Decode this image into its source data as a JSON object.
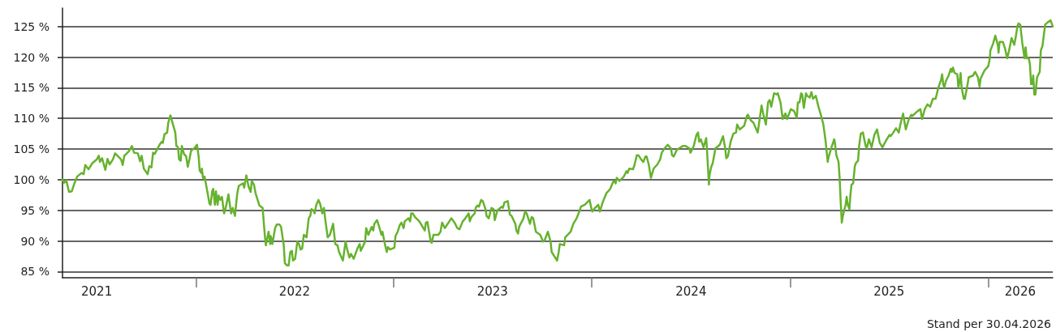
{
  "chart_data": {
    "type": "line",
    "color": "#66b22e",
    "marker": "none",
    "line_style": "solid",
    "grid": "y",
    "xlim": [
      "2021-04-30",
      "2026-04-30"
    ],
    "xticks": [
      {
        "value": "2021-07-02",
        "label": "2021"
      },
      {
        "value": "2022-01-01",
        "label": null
      },
      {
        "value": "2022-07-02",
        "label": "2022"
      },
      {
        "value": "2023-01-01",
        "label": null
      },
      {
        "value": "2023-07-02",
        "label": "2023"
      },
      {
        "value": "2024-01-01",
        "label": null
      },
      {
        "value": "2024-07-02",
        "label": "2024"
      },
      {
        "value": "2025-01-01",
        "label": null
      },
      {
        "value": "2025-07-02",
        "label": "2025"
      },
      {
        "value": "2026-01-01",
        "label": null
      },
      {
        "value": "2026-03-01",
        "label": "2026"
      }
    ],
    "ylim": [
      84,
      128
    ],
    "yticks": [
      {
        "value": 85,
        "label": "85 %"
      },
      {
        "value": 90,
        "label": "90 %"
      },
      {
        "value": 95,
        "label": "95 %"
      },
      {
        "value": 100,
        "label": "100 %"
      },
      {
        "value": 105,
        "label": "105 %"
      },
      {
        "value": 110,
        "label": "110 %"
      },
      {
        "value": 115,
        "label": "115 %"
      },
      {
        "value": 120,
        "label": "120 %"
      },
      {
        "value": 125,
        "label": "125 %"
      }
    ],
    "annotations": [
      "Stand per 30.04.2026"
    ],
    "x": [
      "2021-04-30",
      "2021-05-03",
      "2021-05-07",
      "2021-05-12",
      "2021-05-17",
      "2021-05-22",
      "2021-05-27",
      "2021-06-04",
      "2021-06-08",
      "2021-06-11",
      "2021-06-17",
      "2021-06-24",
      "2021-07-02",
      "2021-07-06",
      "2021-07-08",
      "2021-07-12",
      "2021-07-18",
      "2021-07-22",
      "2021-07-26",
      "2021-08-01",
      "2021-08-05",
      "2021-08-16",
      "2021-08-19",
      "2021-08-22",
      "2021-08-30",
      "2021-09-05",
      "2021-09-09",
      "2021-09-16",
      "2021-09-20",
      "2021-09-23",
      "2021-09-27",
      "2021-10-04",
      "2021-10-07",
      "2021-10-11",
      "2021-10-14",
      "2021-10-17",
      "2021-10-26",
      "2021-10-30",
      "2021-11-01",
      "2021-11-04",
      "2021-11-09",
      "2021-11-11",
      "2021-11-15",
      "2021-11-21",
      "2021-11-24",
      "2021-11-26",
      "2021-11-29",
      "2021-12-01",
      "2021-12-04",
      "2021-12-06",
      "2021-12-10",
      "2021-12-14",
      "2021-12-17",
      "2021-12-20",
      "2021-12-23",
      "2021-12-31",
      "2022-01-03",
      "2022-01-06",
      "2022-01-08",
      "2022-01-11",
      "2022-01-12",
      "2022-01-14",
      "2022-01-17",
      "2022-01-23",
      "2022-01-26",
      "2022-01-28",
      "2022-01-31",
      "2022-02-02",
      "2022-02-05",
      "2022-02-07",
      "2022-02-10",
      "2022-02-12",
      "2022-02-15",
      "2022-02-18",
      "2022-02-22",
      "2022-02-25",
      "2022-03-02",
      "2022-03-04",
      "2022-03-07",
      "2022-03-10",
      "2022-03-14",
      "2022-03-18",
      "2022-03-21",
      "2022-03-25",
      "2022-03-29",
      "2022-03-31",
      "2022-04-04",
      "2022-04-08",
      "2022-04-12",
      "2022-04-14",
      "2022-04-18",
      "2022-04-21",
      "2022-04-28",
      "2022-05-04",
      "2022-05-08",
      "2022-05-10",
      "2022-05-13",
      "2022-05-15",
      "2022-05-18",
      "2022-05-19",
      "2022-05-22",
      "2022-05-27",
      "2022-05-30",
      "2022-06-04",
      "2022-06-07",
      "2022-06-12",
      "2022-06-14",
      "2022-06-18",
      "2022-06-21",
      "2022-06-24",
      "2022-06-27",
      "2022-06-29",
      "2022-07-03",
      "2022-07-07",
      "2022-07-10",
      "2022-07-13",
      "2022-07-16",
      "2022-07-19",
      "2022-07-24",
      "2022-07-28",
      "2022-07-31",
      "2022-08-02",
      "2022-08-06",
      "2022-08-08",
      "2022-08-11",
      "2022-08-15",
      "2022-08-18",
      "2022-08-22",
      "2022-08-25",
      "2022-08-28",
      "2022-09-01",
      "2022-09-05",
      "2022-09-11",
      "2022-09-15",
      "2022-09-19",
      "2022-09-22",
      "2022-09-29",
      "2022-10-04",
      "2022-10-07",
      "2022-10-11",
      "2022-10-14",
      "2022-10-19",
      "2022-10-26",
      "2022-10-30",
      "2022-11-01",
      "2022-11-09",
      "2022-11-11",
      "2022-11-15",
      "2022-11-21",
      "2022-11-24",
      "2022-11-26",
      "2022-12-01",
      "2022-12-04",
      "2022-12-09",
      "2022-12-11",
      "2022-12-16",
      "2022-12-19",
      "2022-12-21",
      "2022-12-25",
      "2023-01-02",
      "2023-01-04",
      "2023-01-08",
      "2023-01-12",
      "2023-01-15",
      "2023-01-19",
      "2023-01-21",
      "2023-01-28",
      "2023-01-31",
      "2023-02-02",
      "2023-02-05",
      "2023-02-09",
      "2023-02-17",
      "2023-02-27",
      "2023-03-01",
      "2023-03-04",
      "2023-03-10",
      "2023-03-12",
      "2023-03-15",
      "2023-03-24",
      "2023-03-28",
      "2023-03-31",
      "2023-04-05",
      "2023-04-17",
      "2023-04-23",
      "2023-04-28",
      "2023-05-02",
      "2023-05-08",
      "2023-05-12",
      "2023-05-16",
      "2023-05-19",
      "2023-05-21",
      "2023-05-24",
      "2023-05-30",
      "2023-06-01",
      "2023-06-04",
      "2023-06-07",
      "2023-06-11",
      "2023-06-14",
      "2023-06-19",
      "2023-06-21",
      "2023-06-25",
      "2023-06-30",
      "2023-07-04",
      "2023-07-06",
      "2023-07-11",
      "2023-07-19",
      "2023-07-21",
      "2023-07-24",
      "2023-07-30",
      "2023-08-03",
      "2023-08-06",
      "2023-08-13",
      "2023-08-15",
      "2023-08-18",
      "2023-08-20",
      "2023-08-28",
      "2023-08-31",
      "2023-09-03",
      "2023-09-09",
      "2023-09-12",
      "2023-09-15",
      "2023-09-20",
      "2023-09-28",
      "2023-10-03",
      "2023-10-06",
      "2023-10-12",
      "2023-10-17",
      "2023-10-19",
      "2023-10-24",
      "2023-10-29",
      "2023-11-01",
      "2023-11-03",
      "2023-11-11",
      "2023-11-13",
      "2023-11-23",
      "2023-11-28",
      "2023-12-04",
      "2023-12-09",
      "2023-12-12",
      "2023-12-19",
      "2023-12-28",
      "2023-12-31",
      "2024-01-02",
      "2024-01-07",
      "2024-01-13",
      "2024-01-16",
      "2024-01-21",
      "2024-01-28",
      "2024-02-04",
      "2024-02-09",
      "2024-02-11",
      "2024-02-14",
      "2024-02-16",
      "2024-02-21",
      "2024-02-29",
      "2024-03-05",
      "2024-03-07",
      "2024-03-10",
      "2024-03-17",
      "2024-03-20",
      "2024-03-24",
      "2024-03-27",
      "2024-04-01",
      "2024-04-05",
      "2024-04-09",
      "2024-04-11",
      "2024-04-15",
      "2024-04-19",
      "2024-04-24",
      "2024-05-01",
      "2024-05-06",
      "2024-05-09",
      "2024-05-14",
      "2024-05-20",
      "2024-05-26",
      "2024-05-28",
      "2024-05-31",
      "2024-06-06",
      "2024-06-17",
      "2024-06-22",
      "2024-06-29",
      "2024-07-01",
      "2024-07-07",
      "2024-07-12",
      "2024-07-15",
      "2024-07-17",
      "2024-07-20",
      "2024-07-25",
      "2024-07-30",
      "2024-07-31",
      "2024-08-04",
      "2024-08-05",
      "2024-08-08",
      "2024-08-11",
      "2024-08-16",
      "2024-08-24",
      "2024-08-30",
      "2024-09-03",
      "2024-09-05",
      "2024-09-08",
      "2024-09-13",
      "2024-09-18",
      "2024-09-23",
      "2024-09-25",
      "2024-09-30",
      "2024-10-08",
      "2024-10-13",
      "2024-10-15",
      "2024-10-20",
      "2024-10-25",
      "2024-11-02",
      "2024-11-07",
      "2024-11-09",
      "2024-11-12",
      "2024-11-17",
      "2024-11-21",
      "2024-11-24",
      "2024-11-27",
      "2024-12-02",
      "2024-12-07",
      "2024-12-09",
      "2024-12-14",
      "2024-12-18",
      "2024-12-23",
      "2024-12-26",
      "2025-01-02",
      "2025-01-08",
      "2025-01-13",
      "2025-01-15",
      "2025-01-18",
      "2025-01-21",
      "2025-01-23",
      "2025-01-26",
      "2025-01-30",
      "2025-02-01",
      "2025-02-06",
      "2025-02-09",
      "2025-02-12",
      "2025-02-17",
      "2025-02-22",
      "2025-02-27",
      "2025-03-03",
      "2025-03-07",
      "2025-03-11",
      "2025-03-13",
      "2025-03-18",
      "2025-03-23",
      "2025-03-24",
      "2025-03-27",
      "2025-03-31",
      "2025-04-02",
      "2025-04-04",
      "2025-04-06",
      "2025-04-08",
      "2025-04-13",
      "2025-04-15",
      "2025-04-17",
      "2025-04-20",
      "2025-04-22",
      "2025-04-24",
      "2025-04-27",
      "2025-04-30",
      "2025-05-02",
      "2025-05-06",
      "2025-05-08",
      "2025-05-11",
      "2025-05-15",
      "2025-05-20",
      "2025-05-22",
      "2025-05-26",
      "2025-05-31",
      "2025-06-05",
      "2025-06-10",
      "2025-06-15",
      "2025-06-20",
      "2025-06-28",
      "2025-07-03",
      "2025-07-05",
      "2025-07-10",
      "2025-07-15",
      "2025-07-20",
      "2025-07-23",
      "2025-07-28",
      "2025-08-02",
      "2025-08-07",
      "2025-08-12",
      "2025-08-14",
      "2025-08-24",
      "2025-08-29",
      "2025-09-01",
      "2025-09-06",
      "2025-09-11",
      "2025-09-16",
      "2025-09-21",
      "2025-09-26",
      "2025-10-01",
      "2025-10-06",
      "2025-10-08",
      "2025-10-10",
      "2025-10-12",
      "2025-10-15",
      "2025-10-20",
      "2025-10-24",
      "2025-10-26",
      "2025-10-28",
      "2025-10-31",
      "2025-11-05",
      "2025-11-07",
      "2025-11-10",
      "2025-11-11",
      "2025-11-13",
      "2025-11-17",
      "2025-11-19",
      "2025-11-24",
      "2025-11-26",
      "2025-12-04",
      "2025-12-08",
      "2025-12-13",
      "2025-12-16",
      "2025-12-18",
      "2025-12-25",
      "2026-01-01",
      "2026-01-04",
      "2026-01-05",
      "2026-01-10",
      "2026-01-14",
      "2026-01-16",
      "2026-01-19",
      "2026-01-20",
      "2026-01-22",
      "2026-01-28",
      "2026-02-01",
      "2026-02-05",
      "2026-02-08",
      "2026-02-13",
      "2026-02-18",
      "2026-02-20",
      "2026-02-24",
      "2026-02-26",
      "2026-03-01",
      "2026-03-05",
      "2026-03-09",
      "2026-03-11",
      "2026-03-13",
      "2026-03-17",
      "2026-03-19",
      "2026-03-21",
      "2026-03-23",
      "2026-03-25",
      "2026-03-27",
      "2026-03-29",
      "2026-04-01",
      "2026-04-06",
      "2026-04-08",
      "2026-04-11",
      "2026-04-16",
      "2026-04-21",
      "2026-04-26",
      "2026-04-30"
    ],
    "values": [
      100.0,
      99.5,
      99.9,
      98.0,
      98.1,
      99.4,
      100.5,
      101.1,
      100.9,
      102.4,
      101.7,
      102.7,
      103.3,
      103.9,
      102.9,
      103.5,
      101.6,
      103.4,
      102.5,
      103.3,
      104.3,
      103.3,
      102.4,
      103.9,
      104.6,
      105.5,
      104.4,
      104.3,
      103.0,
      103.9,
      101.8,
      100.9,
      102.2,
      102.0,
      104.4,
      104.2,
      105.7,
      106.2,
      106.0,
      107.4,
      107.7,
      109.3,
      110.5,
      108.6,
      107.7,
      105.5,
      105.3,
      103.3,
      103.1,
      105.5,
      104.2,
      103.8,
      102.1,
      103.3,
      104.7,
      105.3,
      105.7,
      103.8,
      101.5,
      101.1,
      101.8,
      100.3,
      100.5,
      97.6,
      96.1,
      95.9,
      98.1,
      98.5,
      95.9,
      98.1,
      95.9,
      97.4,
      96.7,
      97.2,
      94.5,
      95.4,
      97.6,
      96.3,
      94.5,
      95.4,
      94.1,
      97.6,
      99.0,
      99.2,
      99.4,
      98.7,
      100.7,
      98.9,
      98.0,
      99.8,
      99.2,
      97.8,
      95.8,
      95.4,
      91.0,
      89.3,
      90.6,
      91.5,
      89.5,
      90.8,
      89.5,
      92.1,
      92.7,
      92.7,
      92.3,
      89.3,
      86.4,
      86.0,
      86.0,
      88.2,
      88.4,
      86.8,
      87.1,
      89.9,
      89.5,
      88.6,
      88.8,
      91.0,
      90.6,
      93.7,
      94.1,
      95.2,
      95.0,
      94.5,
      95.9,
      96.7,
      96.1,
      94.5,
      95.4,
      93.2,
      90.6,
      91.0,
      92.8,
      89.5,
      89.3,
      88.2,
      86.8,
      89.9,
      88.6,
      87.3,
      87.9,
      87.1,
      88.8,
      89.5,
      88.4,
      89.9,
      92.1,
      91.0,
      92.3,
      91.7,
      92.8,
      93.4,
      92.6,
      91.0,
      91.5,
      89.3,
      88.2,
      89.0,
      88.6,
      88.9,
      90.8,
      91.5,
      92.6,
      93.0,
      92.1,
      93.2,
      93.7,
      93.2,
      94.5,
      94.5,
      93.9,
      93.2,
      91.7,
      93.0,
      93.1,
      89.9,
      89.7,
      91.0,
      91.0,
      91.5,
      93.0,
      92.1,
      93.7,
      93.0,
      92.1,
      91.9,
      93.2,
      93.6,
      94.1,
      94.5,
      93.2,
      93.9,
      94.5,
      95.4,
      95.8,
      95.6,
      96.7,
      96.5,
      95.2,
      94.1,
      93.7,
      95.4,
      95.2,
      93.4,
      95.0,
      95.6,
      95.4,
      96.3,
      96.5,
      94.3,
      94.1,
      92.8,
      91.7,
      91.2,
      92.3,
      93.7,
      94.8,
      94.5,
      92.8,
      93.9,
      93.7,
      91.5,
      91.0,
      89.9,
      90.1,
      91.5,
      89.9,
      88.2,
      87.5,
      86.8,
      88.2,
      89.5,
      89.3,
      90.6,
      91.5,
      92.8,
      93.7,
      94.8,
      95.6,
      95.9,
      96.7,
      95.4,
      94.8,
      95.4,
      95.9,
      94.8,
      96.3,
      97.8,
      98.5,
      99.6,
      99.8,
      99.4,
      100.3,
      99.8,
      100.5,
      101.4,
      101.1,
      101.8,
      101.7,
      102.5,
      104.0,
      104.0,
      103.3,
      102.9,
      103.8,
      103.8,
      102.5,
      100.3,
      101.8,
      102.5,
      103.3,
      104.4,
      105.1,
      105.7,
      105.1,
      104.0,
      103.8,
      104.9,
      105.5,
      105.5,
      105.1,
      104.4,
      105.5,
      107.3,
      107.7,
      106.2,
      106.6,
      105.3,
      106.8,
      105.5,
      99.2,
      100.7,
      102.0,
      102.7,
      105.1,
      105.7,
      107.1,
      105.1,
      103.5,
      103.8,
      106.2,
      107.5,
      107.7,
      109.0,
      108.2,
      108.8,
      110.4,
      110.6,
      109.7,
      109.3,
      107.7,
      110.8,
      112.1,
      110.8,
      109.0,
      112.6,
      113.0,
      111.9,
      114.1,
      113.9,
      114.1,
      112.6,
      109.9,
      110.8,
      109.9,
      111.5,
      111.2,
      110.1,
      112.6,
      112.6,
      114.1,
      113.9,
      111.7,
      114.1,
      113.7,
      113.4,
      114.3,
      113.2,
      113.7,
      111.9,
      110.4,
      109.0,
      106.4,
      102.9,
      103.8,
      105.3,
      106.6,
      106.2,
      104.0,
      102.9,
      100.3,
      96.3,
      93.0,
      94.1,
      95.9,
      97.2,
      95.9,
      95.2,
      97.6,
      99.2,
      99.4,
      102.2,
      102.7,
      103.1,
      105.5,
      107.5,
      107.7,
      105.5,
      105.1,
      106.6,
      105.3,
      107.3,
      108.2,
      106.0,
      105.3,
      106.6,
      107.3,
      107.1,
      107.7,
      108.4,
      107.7,
      109.0,
      110.8,
      108.2,
      109.7,
      110.6,
      110.4,
      111.2,
      111.5,
      109.9,
      111.5,
      112.3,
      111.9,
      113.2,
      113.2,
      115.0,
      116.3,
      117.2,
      115.6,
      115.0,
      116.1,
      117.0,
      118.1,
      117.6,
      118.3,
      117.4,
      117.2,
      115.0,
      116.5,
      117.4,
      115.0,
      113.2,
      113.2,
      115.6,
      116.7,
      117.0,
      117.6,
      116.7,
      115.2,
      116.5,
      117.8,
      118.5,
      119.8,
      121.1,
      122.2,
      123.5,
      122.9,
      121.8,
      120.7,
      122.5,
      122.5,
      121.4,
      119.8,
      120.9,
      123.1,
      122.0,
      122.9,
      125.1,
      125.5,
      125.3,
      122.2,
      119.8,
      121.6,
      119.8,
      119.8,
      118.7,
      115.6,
      115.6,
      117.0,
      113.9,
      113.9,
      116.7,
      117.6,
      121.1,
      121.8,
      125.3,
      125.7,
      126.0,
      125.0
    ]
  }
}
